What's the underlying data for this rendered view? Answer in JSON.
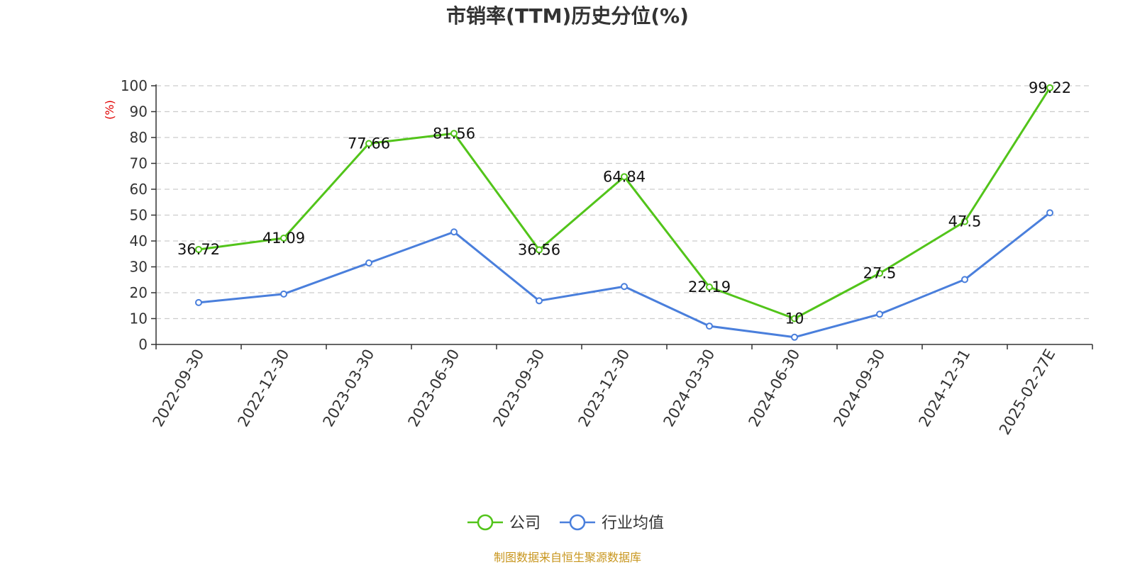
{
  "chart_data": {
    "type": "line",
    "title": "市销率(TTM)历史分位(%)",
    "ylabel": "(%)",
    "xlabel": "",
    "ylim": [
      0,
      100
    ],
    "yticks": [
      0,
      10,
      20,
      30,
      40,
      50,
      60,
      70,
      80,
      90,
      100
    ],
    "grid": true,
    "legend_position": "bottom-center",
    "categories": [
      "2022-09-30",
      "2022-12-30",
      "2023-03-30",
      "2023-06-30",
      "2023-09-30",
      "2023-12-30",
      "2024-03-30",
      "2024-06-30",
      "2024-09-30",
      "2024-12-31",
      "2025-02-27E"
    ],
    "series": [
      {
        "name": "公司",
        "color": "#52c41a",
        "values": [
          36.72,
          41.09,
          77.66,
          81.56,
          36.56,
          64.84,
          22.19,
          10,
          27.5,
          47.5,
          99.22
        ],
        "labels": [
          "36.72",
          "41.09",
          "77.66",
          "81.56",
          "36.56",
          "64.84",
          "22.19",
          "10",
          "27.5",
          "47.5",
          "99.22"
        ]
      },
      {
        "name": "行业均值",
        "color": "#4a7fdc",
        "values": [
          16.2,
          19.5,
          31.5,
          43.5,
          16.9,
          22.4,
          7.1,
          2.8,
          11.7,
          25.1,
          50.9
        ]
      }
    ]
  },
  "source": "制图数据来自恒生聚源数据库"
}
